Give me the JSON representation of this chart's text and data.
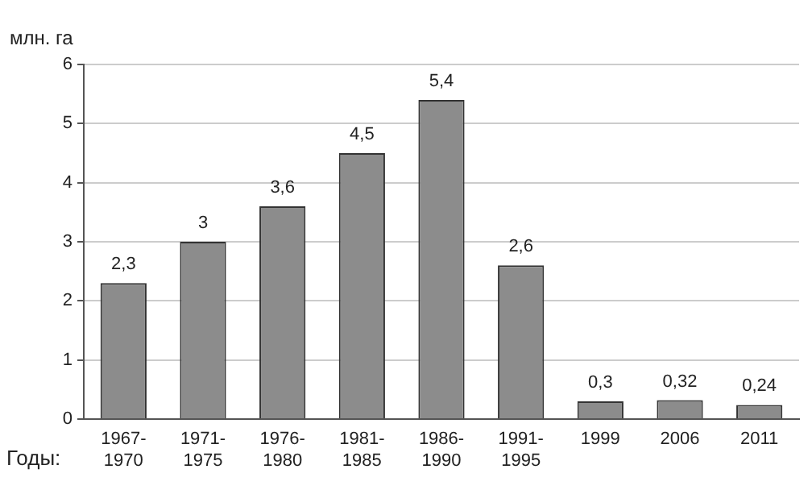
{
  "chart_data": {
    "type": "bar",
    "ylabel": "млн. га",
    "xlabel": "Годы:",
    "categories": [
      "1967-1970",
      "1971-1975",
      "1976-1980",
      "1981-1985",
      "1986-1990",
      "1991-1995",
      "1999",
      "2006",
      "2011"
    ],
    "values": [
      2.3,
      3,
      3.6,
      4.5,
      5.4,
      2.6,
      0.3,
      0.32,
      0.24
    ],
    "value_labels": [
      "2,3",
      "3",
      "3,6",
      "4,5",
      "5,4",
      "2,6",
      "0,3",
      "0,32",
      "0,24"
    ],
    "color": "#8c8c8c",
    "ylim": [
      0,
      6
    ],
    "yticks": [
      0,
      1,
      2,
      3,
      4,
      5,
      6
    ],
    "grid": "y"
  }
}
